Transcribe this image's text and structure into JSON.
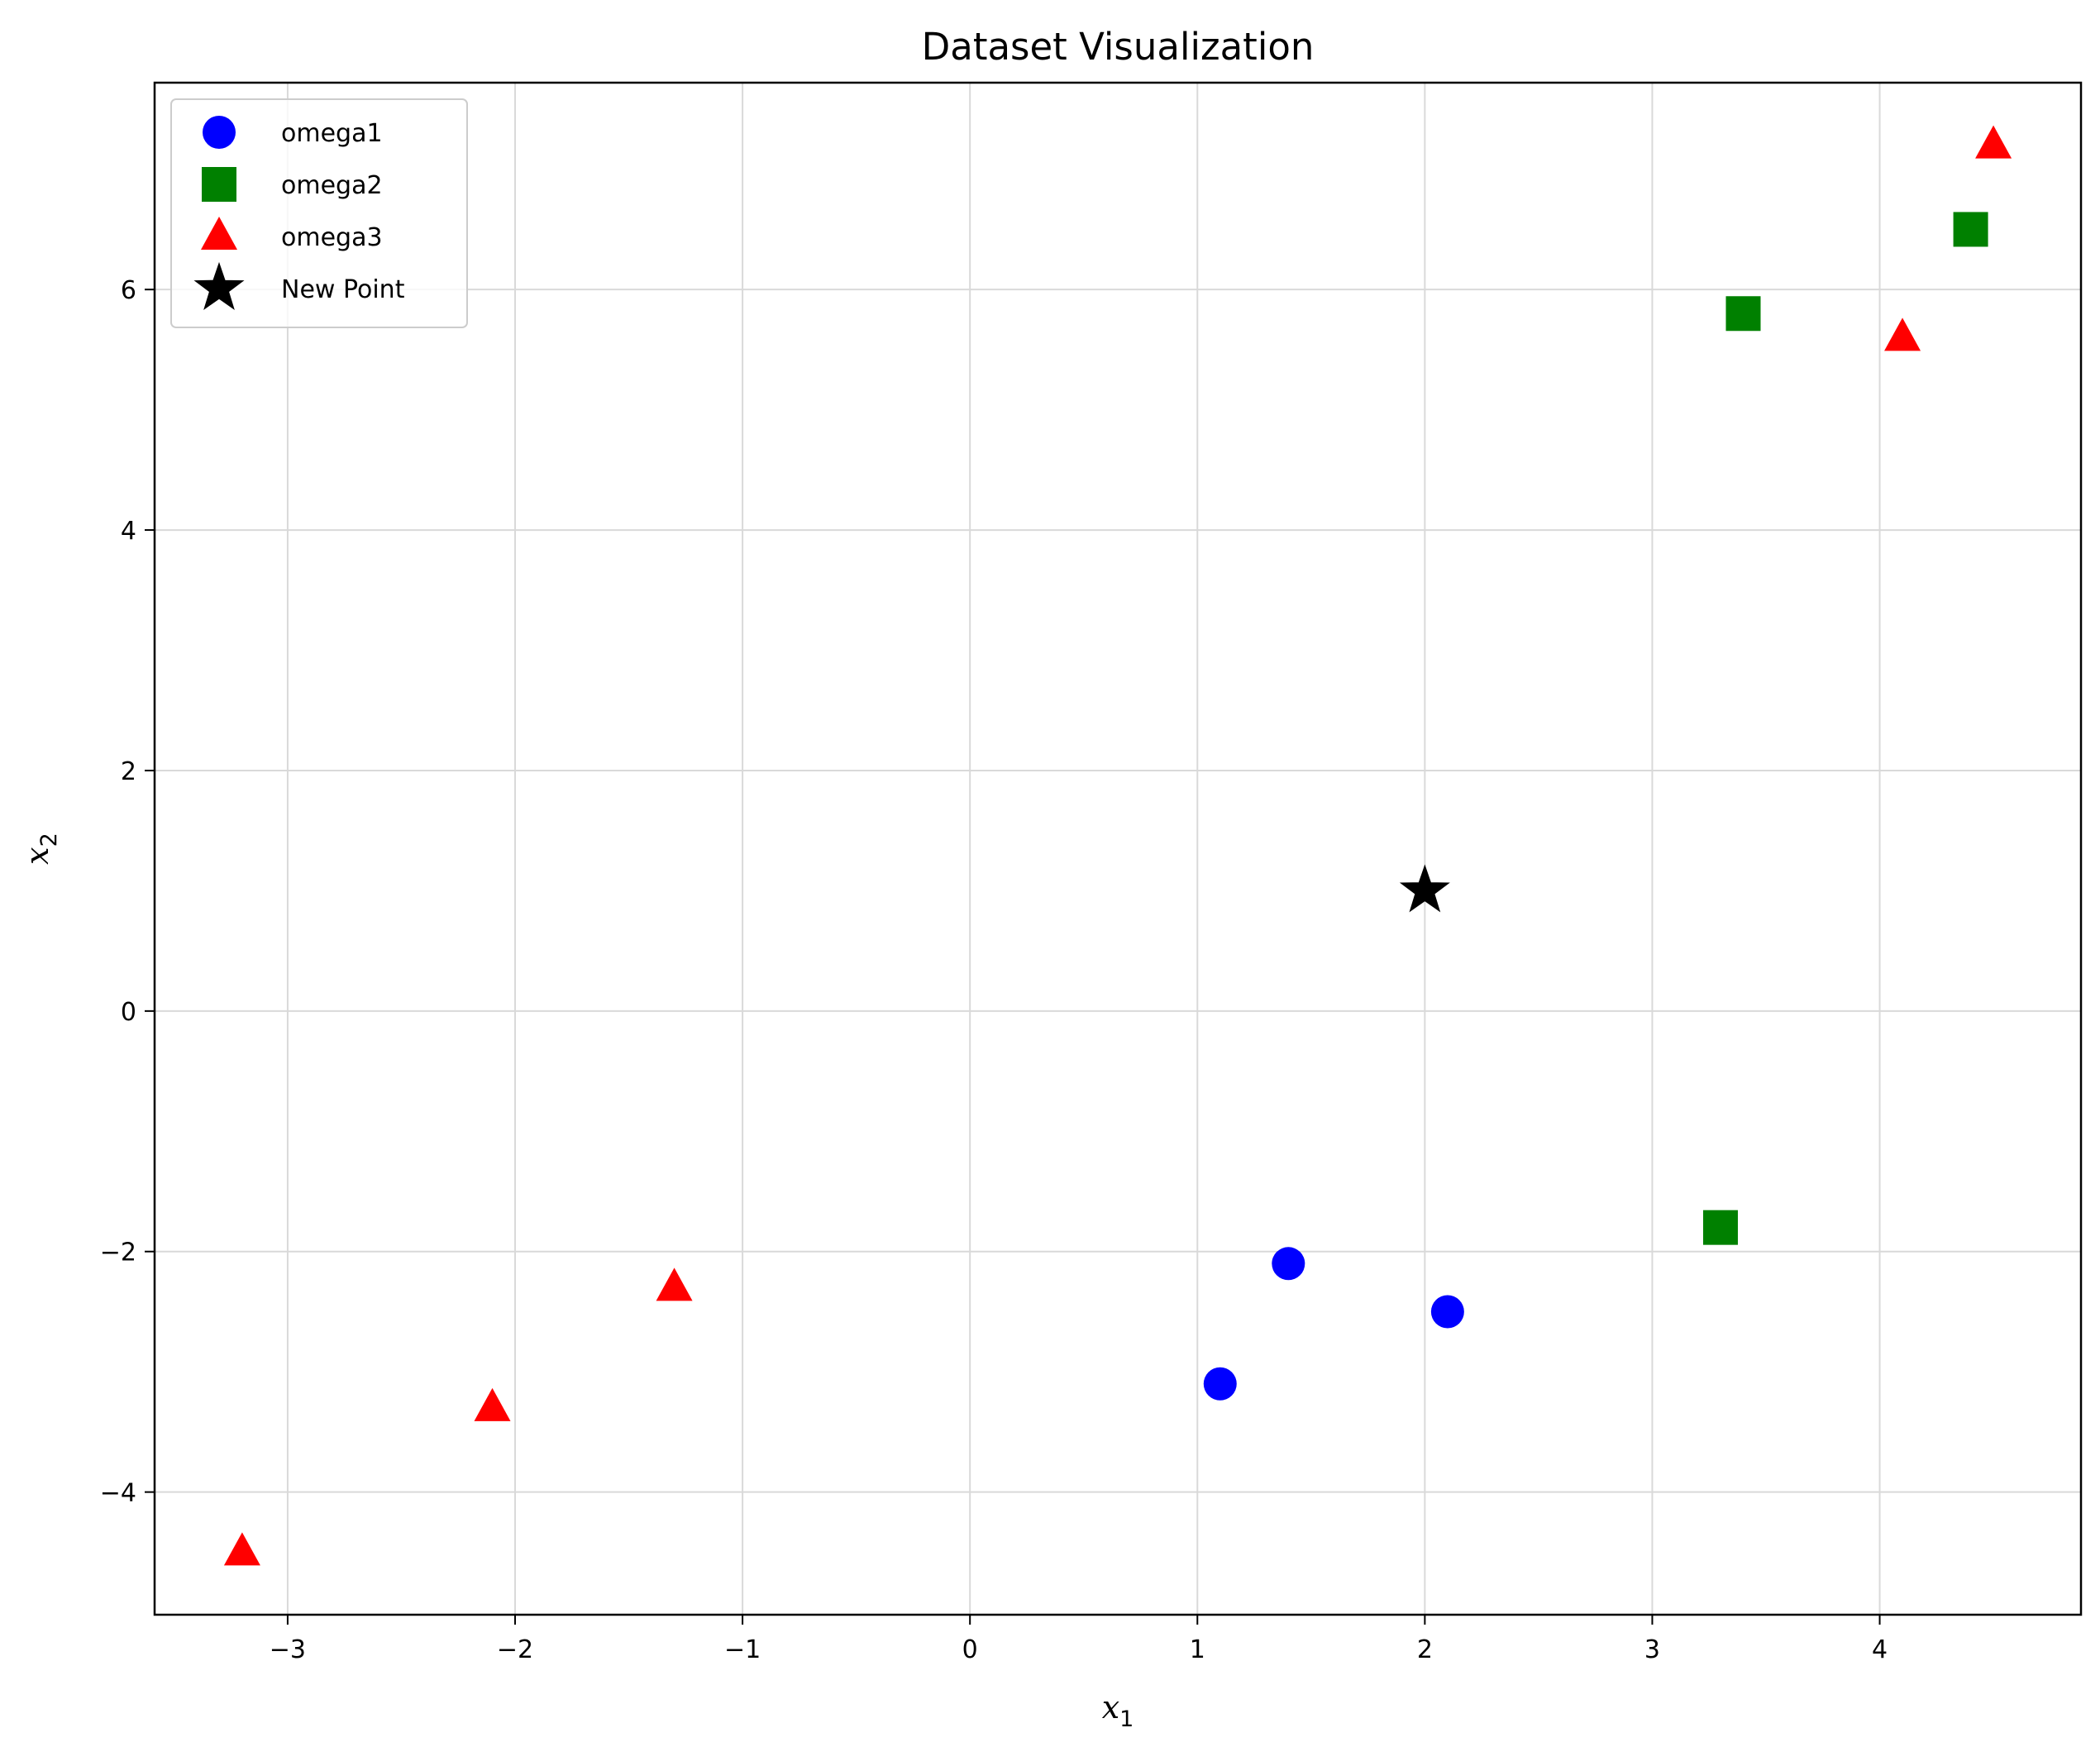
{
  "chart_data": {
    "type": "scatter",
    "title": "Dataset Visualization",
    "xlabel": {
      "main": "x",
      "sub": "1"
    },
    "ylabel": {
      "main": "x",
      "sub": "2"
    },
    "xlim": [
      -3.585,
      4.885
    ],
    "ylim": [
      -5.02,
      7.72
    ],
    "xticks": [
      -3,
      -2,
      -1,
      0,
      1,
      2,
      3,
      4
    ],
    "yticks": [
      -4,
      -2,
      0,
      2,
      4,
      6
    ],
    "xtick_labels": [
      "−3",
      "−2",
      "−1",
      "0",
      "1",
      "2",
      "3",
      "4"
    ],
    "ytick_labels": [
      "−4",
      "−2",
      "0",
      "2",
      "4",
      "6"
    ],
    "grid": true,
    "legend_position": "upper-left",
    "series": [
      {
        "name": "omega1",
        "marker": "circle",
        "color": "#0000ff",
        "points": [
          [
            1.4,
            -2.1
          ],
          [
            2.1,
            -2.5
          ],
          [
            1.1,
            -3.1
          ]
        ]
      },
      {
        "name": "omega2",
        "marker": "square",
        "color": "#008000",
        "points": [
          [
            3.4,
            5.8
          ],
          [
            4.4,
            6.5
          ],
          [
            3.3,
            -1.8
          ]
        ]
      },
      {
        "name": "omega3",
        "marker": "triangle",
        "color": "#ff0000",
        "points": [
          [
            4.5,
            7.2
          ],
          [
            4.1,
            5.6
          ],
          [
            -1.3,
            -2.3
          ],
          [
            -2.1,
            -3.3
          ],
          [
            -3.2,
            -4.5
          ]
        ]
      },
      {
        "name": "New Point",
        "marker": "star",
        "color": "#000000",
        "points": [
          [
            2.0,
            1.0
          ]
        ]
      }
    ]
  }
}
